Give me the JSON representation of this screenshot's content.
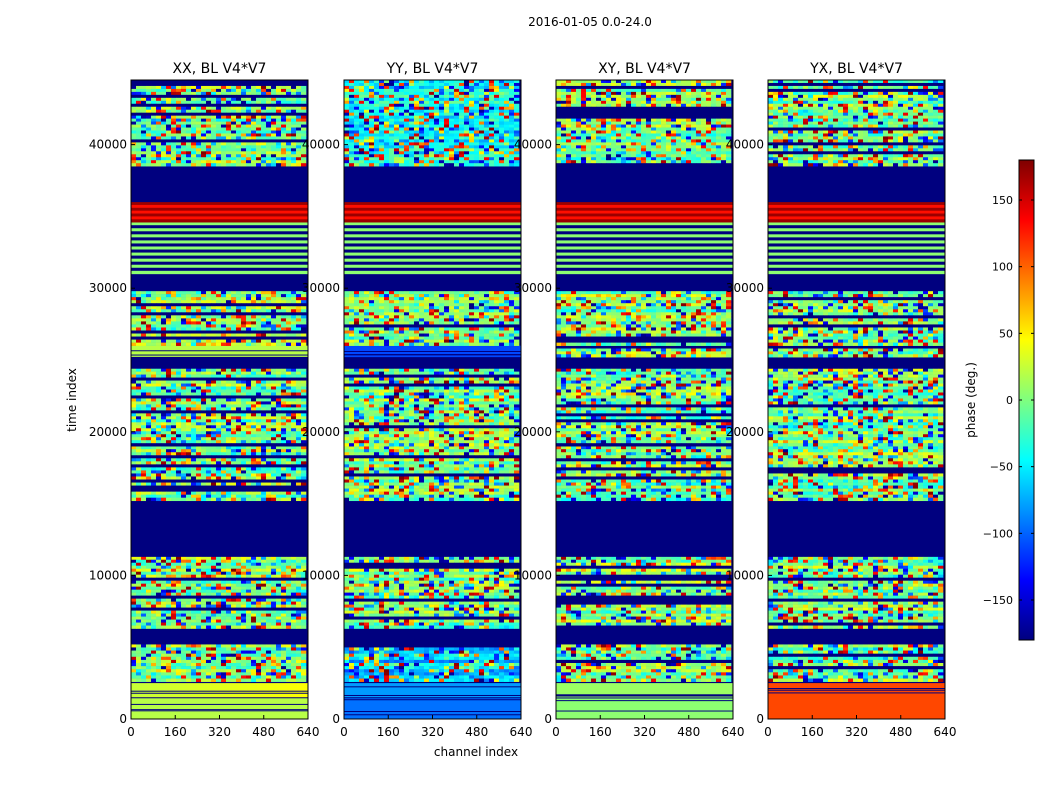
{
  "figure": {
    "suptitle": "2016-01-05 0.0-24.0",
    "xlabel": "channel index",
    "ylabel": "time index"
  },
  "colorbar": {
    "label": "phase (deg.)",
    "range": [
      -180,
      180
    ],
    "ticks": [
      150,
      100,
      50,
      0,
      -50,
      -100,
      -150
    ],
    "tick_labels": [
      "150",
      "100",
      "50",
      "0",
      "−50",
      "−100",
      "−150"
    ],
    "colormap": [
      "#00007f",
      "#0000ff",
      "#007fff",
      "#00ffff",
      "#7fff7f",
      "#ffff00",
      "#ff7f00",
      "#ff0000",
      "#7f0000"
    ],
    "masked_color": "#00007f"
  },
  "chart_data": [
    {
      "type": "heatmap",
      "title": "XX, BL V4*V7",
      "xlim": [
        0,
        640
      ],
      "ylim": [
        0,
        44500
      ],
      "xticks": [
        0,
        160,
        320,
        480,
        640
      ],
      "yticks": [
        0,
        10000,
        20000,
        30000,
        40000
      ],
      "bands": [
        {
          "y0": 0,
          "y1": 1500,
          "left": 20,
          "right": 20,
          "kind": "flat"
        },
        {
          "y0": 1500,
          "y1": 2500,
          "left": 25,
          "right": 45,
          "kind": "flat"
        },
        {
          "y0": 2600,
          "y1": 5200,
          "left": 0,
          "right": 0,
          "kind": "noisy"
        },
        {
          "y0": 5200,
          "y1": 6200,
          "kind": "masked"
        },
        {
          "y0": 6300,
          "y1": 11300,
          "left": 0,
          "right": 0,
          "kind": "noisy"
        },
        {
          "y0": 11300,
          "y1": 15200,
          "kind": "masked"
        },
        {
          "y0": 15200,
          "y1": 19000,
          "left": 0,
          "right": 0,
          "kind": "noisy"
        },
        {
          "y0": 19000,
          "y1": 24400,
          "left": 0,
          "right": 0,
          "kind": "noisy"
        },
        {
          "y0": 24400,
          "y1": 25200,
          "kind": "masked"
        },
        {
          "y0": 25200,
          "y1": 26000,
          "left": 20,
          "right": 20,
          "kind": "flat"
        },
        {
          "y0": 26000,
          "y1": 29800,
          "left": 0,
          "right": 0,
          "kind": "noisy"
        },
        {
          "y0": 29800,
          "y1": 31000,
          "kind": "masked"
        },
        {
          "y0": 31000,
          "y1": 34600,
          "left": 0,
          "right": 0,
          "kind": "striped"
        },
        {
          "y0": 34600,
          "y1": 36000,
          "left": 170,
          "right": 170,
          "kind": "striped"
        },
        {
          "y0": 36000,
          "y1": 38500,
          "kind": "masked"
        },
        {
          "y0": 38500,
          "y1": 44500,
          "left": 0,
          "right": 0,
          "kind": "noisy"
        }
      ]
    },
    {
      "type": "heatmap",
      "title": "YY, BL V4*V7",
      "xlim": [
        0,
        640
      ],
      "ylim": [
        0,
        44500
      ],
      "xticks": [
        0,
        160,
        320,
        480,
        640
      ],
      "yticks": [
        0,
        10000,
        20000,
        30000,
        40000
      ],
      "bands": [
        {
          "y0": 0,
          "y1": 1500,
          "left": -95,
          "right": -95,
          "kind": "flat"
        },
        {
          "y0": 1500,
          "y1": 2500,
          "left": -80,
          "right": -80,
          "kind": "flat"
        },
        {
          "y0": 2600,
          "y1": 5200,
          "left": -60,
          "right": -60,
          "kind": "noisy"
        },
        {
          "y0": 5200,
          "y1": 6200,
          "kind": "masked"
        },
        {
          "y0": 6300,
          "y1": 11300,
          "left": 0,
          "right": 0,
          "kind": "noisy"
        },
        {
          "y0": 11300,
          "y1": 15200,
          "kind": "masked"
        },
        {
          "y0": 15200,
          "y1": 19000,
          "left": 0,
          "right": 0,
          "kind": "noisy"
        },
        {
          "y0": 19000,
          "y1": 24400,
          "left": 0,
          "right": 0,
          "kind": "noisy"
        },
        {
          "y0": 24400,
          "y1": 25200,
          "kind": "masked"
        },
        {
          "y0": 25200,
          "y1": 26000,
          "left": -110,
          "right": -110,
          "kind": "flat"
        },
        {
          "y0": 26000,
          "y1": 29800,
          "left": 0,
          "right": 0,
          "kind": "noisy"
        },
        {
          "y0": 29800,
          "y1": 31000,
          "kind": "masked"
        },
        {
          "y0": 31000,
          "y1": 34600,
          "left": 0,
          "right": 0,
          "kind": "striped"
        },
        {
          "y0": 34600,
          "y1": 36000,
          "left": 170,
          "right": 170,
          "kind": "striped"
        },
        {
          "y0": 36000,
          "y1": 38500,
          "kind": "masked"
        },
        {
          "y0": 38500,
          "y1": 44500,
          "left": -40,
          "right": -40,
          "kind": "noisy"
        }
      ]
    },
    {
      "type": "heatmap",
      "title": "XY, BL V4*V7",
      "xlim": [
        0,
        640
      ],
      "ylim": [
        0,
        44500
      ],
      "xticks": [
        0,
        160,
        320,
        480,
        640
      ],
      "yticks": [
        0,
        10000,
        20000,
        30000,
        40000
      ],
      "bands": [
        {
          "y0": 0,
          "y1": 1500,
          "left": 5,
          "right": 5,
          "kind": "flat"
        },
        {
          "y0": 1500,
          "y1": 2500,
          "left": 10,
          "right": 10,
          "kind": "flat"
        },
        {
          "y0": 2600,
          "y1": 5200,
          "left": 0,
          "right": 0,
          "kind": "noisy"
        },
        {
          "y0": 5200,
          "y1": 6200,
          "kind": "masked"
        },
        {
          "y0": 6300,
          "y1": 11300,
          "left": 0,
          "right": 0,
          "kind": "noisy"
        },
        {
          "y0": 11300,
          "y1": 15200,
          "kind": "masked"
        },
        {
          "y0": 15200,
          "y1": 19000,
          "left": 0,
          "right": 0,
          "kind": "noisy"
        },
        {
          "y0": 19000,
          "y1": 24400,
          "left": 0,
          "right": 0,
          "kind": "noisy"
        },
        {
          "y0": 24400,
          "y1": 25200,
          "kind": "masked"
        },
        {
          "y0": 25200,
          "y1": 26000,
          "left": 0,
          "right": 0,
          "kind": "noisy"
        },
        {
          "y0": 26000,
          "y1": 29800,
          "left": 0,
          "right": 0,
          "kind": "noisy"
        },
        {
          "y0": 29800,
          "y1": 31000,
          "kind": "masked"
        },
        {
          "y0": 31000,
          "y1": 34600,
          "left": 0,
          "right": 0,
          "kind": "striped"
        },
        {
          "y0": 34600,
          "y1": 36000,
          "left": 170,
          "right": 170,
          "kind": "striped"
        },
        {
          "y0": 36000,
          "y1": 38500,
          "kind": "masked"
        },
        {
          "y0": 38500,
          "y1": 44500,
          "left": 0,
          "right": 0,
          "kind": "noisy"
        }
      ]
    },
    {
      "type": "heatmap",
      "title": "YX, BL V4*V7",
      "xlim": [
        0,
        640
      ],
      "ylim": [
        0,
        44500
      ],
      "xticks": [
        0,
        160,
        320,
        480,
        640
      ],
      "yticks": [
        0,
        10000,
        20000,
        30000,
        40000
      ],
      "bands": [
        {
          "y0": 0,
          "y1": 2500,
          "left": 110,
          "right": 110,
          "kind": "flat"
        },
        {
          "y0": 2600,
          "y1": 5200,
          "left": 0,
          "right": 0,
          "kind": "noisy"
        },
        {
          "y0": 5200,
          "y1": 6200,
          "kind": "masked"
        },
        {
          "y0": 6300,
          "y1": 11300,
          "left": 0,
          "right": 0,
          "kind": "noisy"
        },
        {
          "y0": 11300,
          "y1": 15200,
          "kind": "masked"
        },
        {
          "y0": 15200,
          "y1": 19000,
          "left": 0,
          "right": 0,
          "kind": "noisy"
        },
        {
          "y0": 19000,
          "y1": 24400,
          "left": 0,
          "right": 0,
          "kind": "noisy"
        },
        {
          "y0": 24400,
          "y1": 25200,
          "kind": "masked"
        },
        {
          "y0": 25200,
          "y1": 26000,
          "left": 0,
          "right": 0,
          "kind": "noisy"
        },
        {
          "y0": 26000,
          "y1": 29800,
          "left": 0,
          "right": 0,
          "kind": "noisy"
        },
        {
          "y0": 29800,
          "y1": 31000,
          "kind": "masked"
        },
        {
          "y0": 31000,
          "y1": 34600,
          "left": 0,
          "right": 0,
          "kind": "striped"
        },
        {
          "y0": 34600,
          "y1": 36000,
          "left": 170,
          "right": 170,
          "kind": "striped"
        },
        {
          "y0": 36000,
          "y1": 38500,
          "kind": "masked"
        },
        {
          "y0": 38500,
          "y1": 44500,
          "left": 0,
          "right": 0,
          "kind": "noisy"
        }
      ]
    }
  ]
}
